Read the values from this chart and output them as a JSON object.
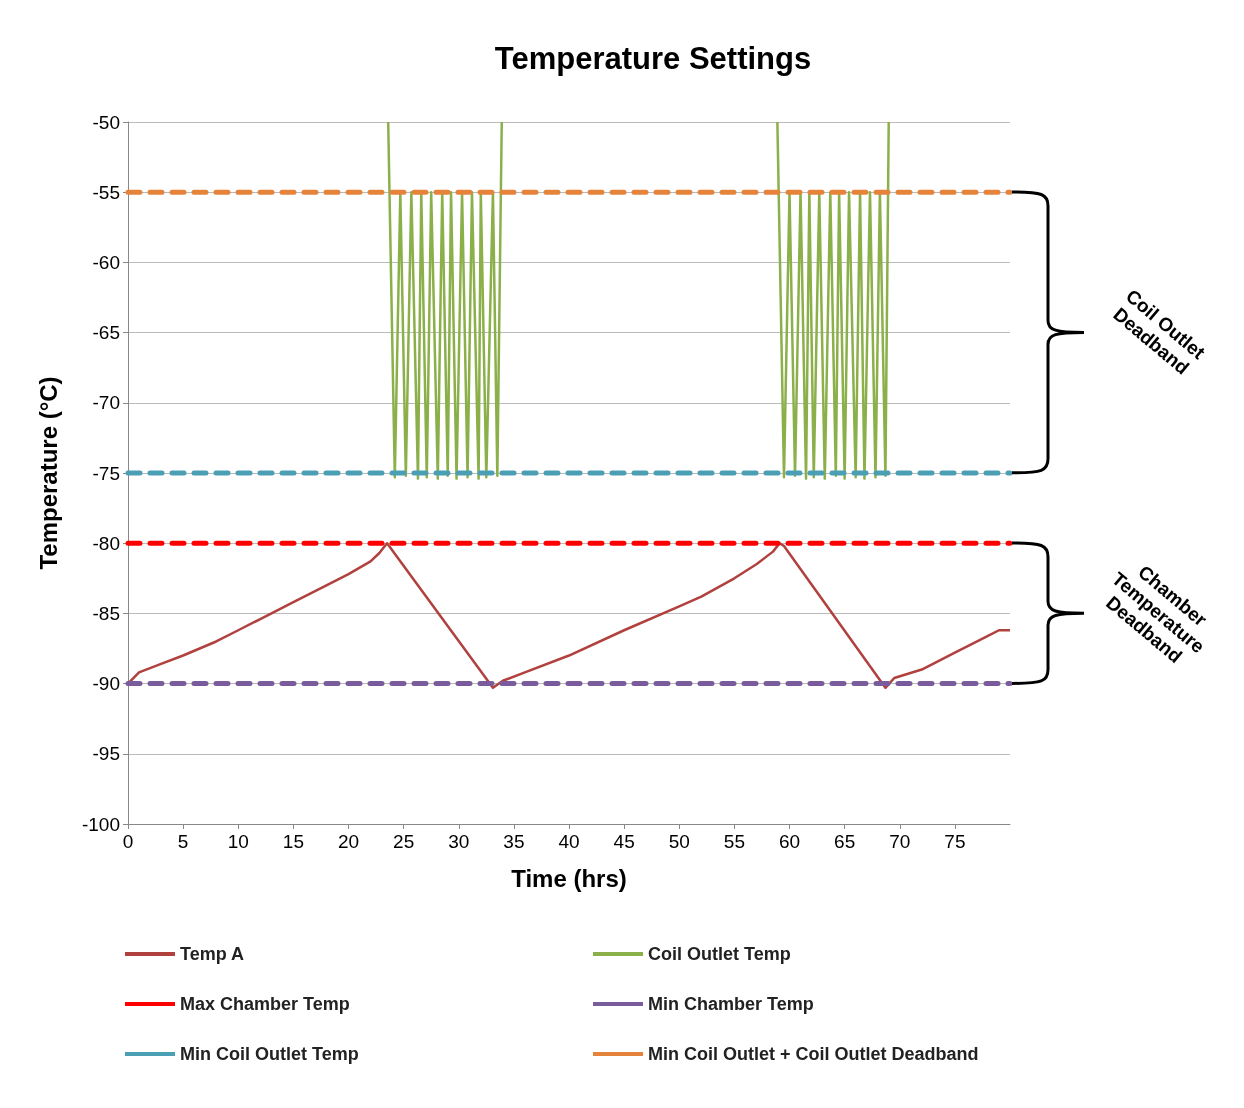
{
  "chart_data": {
    "type": "line",
    "title": "Temperature Settings",
    "xlabel": "Time (hrs)",
    "ylabel": "Temperature (°C)",
    "xlim": [
      0,
      80
    ],
    "xticks": [
      0,
      5,
      10,
      15,
      20,
      25,
      30,
      35,
      40,
      45,
      50,
      55,
      60,
      65,
      70,
      75
    ],
    "ylim": [
      -100,
      -50
    ],
    "yticks": [
      -100,
      -95,
      -90,
      -85,
      -80,
      -75,
      -70,
      -65,
      -60,
      -55,
      -50
    ],
    "grid": "y",
    "legend": "bottom",
    "marker": "none",
    "annotations": [
      "Coil Outlet Deadband",
      "Chamber Temperature Deadband"
    ],
    "series": [
      {
        "name": "Temp A",
        "color": "#b0413e",
        "line_style": "solid",
        "x": [
          0,
          1,
          3,
          5,
          8,
          10,
          12,
          15,
          18,
          20,
          22,
          22.8,
          23.1,
          23.5,
          33.1,
          34,
          36,
          40,
          45,
          50,
          52,
          55,
          57,
          58.5,
          59.1,
          59.5,
          68.7,
          69.5,
          72,
          75,
          78,
          79,
          80
        ],
        "values": [
          -90,
          -89.2,
          -88.6,
          -88,
          -87,
          -86.2,
          -85.4,
          -84.2,
          -83,
          -82.2,
          -81.3,
          -80.7,
          -80.4,
          -80,
          -90.3,
          -89.8,
          -89.2,
          -88,
          -86.2,
          -84.5,
          -83.8,
          -82.5,
          -81.5,
          -80.6,
          -80,
          -80.2,
          -90.3,
          -89.6,
          -89,
          -87.8,
          -86.6,
          -86.2,
          -86.2
        ]
      },
      {
        "name": "Coil Outlet Temp",
        "color": "#8bb04a",
        "line_style": "solid",
        "x": [
          23.6,
          24.2,
          24.7,
          25.2,
          25.7,
          26.3,
          26.6,
          27.1,
          27.5,
          28.1,
          28.5,
          29.0,
          29.3,
          29.8,
          30.3,
          30.8,
          31.2,
          31.8,
          32.0,
          32.5,
          33.1,
          33.5,
          33.9,
          46,
          58.9,
          59.5,
          60.0,
          60.5,
          61.0,
          61.5,
          61.8,
          62.2,
          62.7,
          63.2,
          63.7,
          64.2,
          64.5,
          65.0,
          65.4,
          66.0,
          66.4,
          66.8,
          67.3,
          67.8,
          68.2,
          68.7,
          69.0
        ],
        "values": [
          -50,
          -75.3,
          -55,
          -75.2,
          -55,
          -75.4,
          -55,
          -75.3,
          -55,
          -75.4,
          -55,
          -75.2,
          -55,
          -75.4,
          -55,
          -75.3,
          -55,
          -75.4,
          -55,
          -75.3,
          -55,
          -75.2,
          -50,
          null,
          -50,
          -75.3,
          -55,
          -75.2,
          -55,
          -75.4,
          -55,
          -75.3,
          -55,
          -75.4,
          -55,
          -75.2,
          -55,
          -75.4,
          -55,
          -75.3,
          -55,
          -75.4,
          -55,
          -75.3,
          -55,
          -75.2,
          -50
        ]
      },
      {
        "name": "Max Chamber Temp",
        "color": "#ff0000",
        "line_style": "dashed",
        "x": [
          0,
          80
        ],
        "values": [
          -80,
          -80
        ]
      },
      {
        "name": "Min Chamber Temp",
        "color": "#7a5c9c",
        "line_style": "dashed",
        "x": [
          0,
          80
        ],
        "values": [
          -90,
          -90
        ]
      },
      {
        "name": "Min Coil Outlet Temp",
        "color": "#4a9fb5",
        "line_style": "dashed",
        "x": [
          0,
          80
        ],
        "values": [
          -75,
          -75
        ]
      },
      {
        "name": "Min Coil Outlet + Coil Outlet Deadband",
        "color": "#e5833a",
        "line_style": "dashed",
        "x": [
          0,
          80
        ],
        "values": [
          -55,
          -55
        ]
      }
    ]
  }
}
